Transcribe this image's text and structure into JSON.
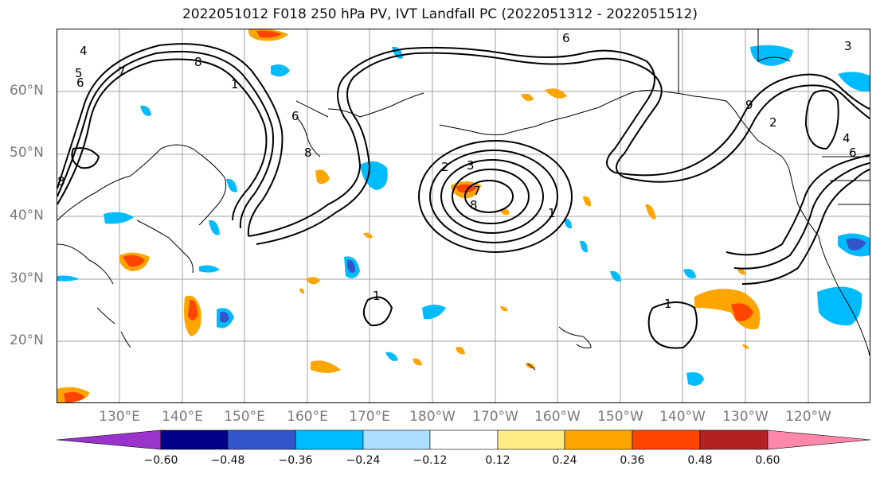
{
  "title": "2022051012 F018 250 hPa PV, IVT Landfall PC (2022051312 - 2022051512)",
  "lat_labels": [
    "60°N",
    "50°N",
    "40°N",
    "30°N",
    "20°N"
  ],
  "lon_labels": [
    "130°E",
    "140°E",
    "150°E",
    "160°E",
    "170°E",
    "180°W",
    "170°W",
    "160°W",
    "150°W",
    "140°W",
    "130°W",
    "120°W"
  ],
  "colorbar": {
    "ticks": [
      "−0.60",
      "−0.48",
      "−0.36",
      "−0.24",
      "−0.12",
      "0.12",
      "0.24",
      "0.36",
      "0.48",
      "0.60"
    ],
    "colors": [
      "#9933cc",
      "#000088",
      "#3355cc",
      "#00bbff",
      "#aaddff",
      "#ffffff",
      "#ffee88",
      "#ffa500",
      "#ff4400",
      "#b22222",
      "#ff88aa"
    ]
  },
  "contour_labels": [
    "4",
    "5",
    "6",
    "7",
    "8",
    "1",
    "2",
    "3",
    "6",
    "8",
    "7",
    "1",
    "8",
    "2",
    "3",
    "6",
    "9",
    "1",
    "1",
    "4",
    "6",
    "8"
  ],
  "map": {
    "extent_lon": [
      120,
      250
    ],
    "extent_lat": [
      10,
      70
    ],
    "pv_contour_color": "#000000",
    "coastline_color": "#000000",
    "gridline_color": "#999999"
  }
}
